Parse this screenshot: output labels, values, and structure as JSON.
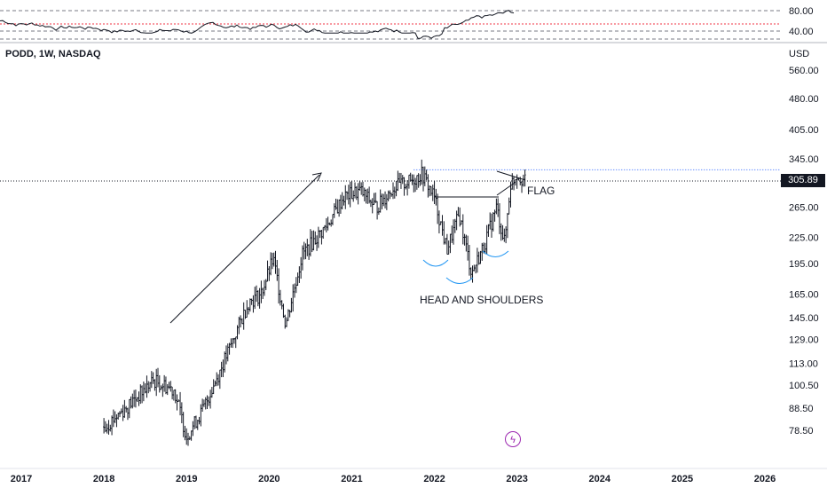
{
  "header": {
    "ticker_label": "PODD, 1W, NASDAQ",
    "currency": "USD"
  },
  "last_price_label": "305.89",
  "annotations": {
    "flag": "FLAG",
    "head_and_shoulders": "HEAD AND SHOULDERS"
  },
  "icons": {
    "bolt": "lightning-bolt-icon"
  },
  "colors": {
    "candles": "#131722",
    "rsi_line": "#131722",
    "resistance": "#2962ff",
    "rsi_mid": "#f23645",
    "cup": "#2196f3",
    "bolt": "#9c27b0"
  },
  "chart_data": [
    {
      "type": "line",
      "title": "",
      "yticks": [
        "80.00",
        "40.00"
      ],
      "ylim": [
        40,
        80
      ],
      "grid": false
    },
    {
      "type": "candlestick",
      "title": "PODD, 1W, NASDAQ",
      "y_scale": "log",
      "yticks": [
        "560.00",
        "480.00",
        "405.00",
        "345.00",
        "265.00",
        "225.00",
        "195.00",
        "165.00",
        "145.00",
        "129.00",
        "113.00",
        "100.50",
        "88.50",
        "78.50"
      ],
      "xticks": [
        "2017",
        "2018",
        "2019",
        "2020",
        "2021",
        "2022",
        "2023",
        "2024",
        "2025",
        "2026"
      ],
      "xlim": [
        2017.0,
        2026.5
      ],
      "last_price": 305.89,
      "resistance_level": 325,
      "trend": [
        [
          2018.0,
          80
        ],
        [
          2018.3,
          90
        ],
        [
          2018.6,
          103
        ],
        [
          2018.85,
          98
        ],
        [
          2019.0,
          76
        ],
        [
          2019.2,
          88
        ],
        [
          2019.5,
          120
        ],
        [
          2019.75,
          158
        ],
        [
          2019.9,
          165
        ],
        [
          2020.05,
          200
        ],
        [
          2020.2,
          140
        ],
        [
          2020.4,
          205
        ],
        [
          2020.7,
          240
        ],
        [
          2020.9,
          280
        ],
        [
          2021.1,
          290
        ],
        [
          2021.3,
          265
        ],
        [
          2021.5,
          295
        ],
        [
          2021.7,
          305
        ],
        [
          2021.85,
          318
        ],
        [
          2022.0,
          280
        ],
        [
          2022.15,
          210
        ],
        [
          2022.3,
          255
        ],
        [
          2022.45,
          185
        ],
        [
          2022.6,
          215
        ],
        [
          2022.75,
          265
        ],
        [
          2022.85,
          218
        ],
        [
          2022.92,
          300
        ],
        [
          2023.0,
          318
        ],
        [
          2023.1,
          305
        ]
      ]
    }
  ]
}
